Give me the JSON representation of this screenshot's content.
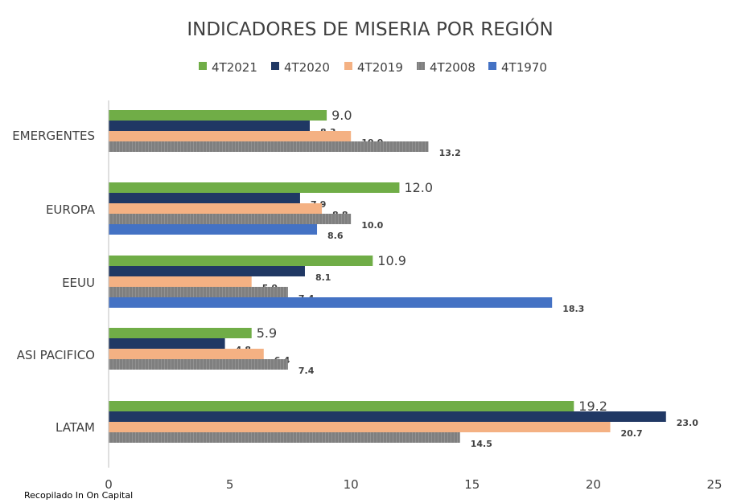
{
  "chart_data": {
    "type": "bar",
    "orientation": "horizontal",
    "title": "INDICADORES DE MISERIA POR REGIÓN",
    "categories": [
      "EMERGENTES",
      "EUROPA",
      "EEUU",
      "ASI PACIFICO",
      "LATAM"
    ],
    "series": [
      {
        "name": "4T2021",
        "color": "#70ad47",
        "values": [
          9.0,
          12.0,
          10.9,
          5.9,
          19.2
        ],
        "labels": [
          "9.0",
          "12.0",
          "10.9",
          "5.9",
          "19.2"
        ],
        "pattern": "solid"
      },
      {
        "name": "4T2020",
        "color": "#203864",
        "values": [
          8.3,
          7.9,
          8.1,
          4.8,
          23.0
        ],
        "labels": [
          "8.3",
          "7.9",
          "8.1",
          "4.8",
          "23.0"
        ],
        "pattern": "solid"
      },
      {
        "name": "4T2019",
        "color": "#f4b183",
        "values": [
          10.0,
          8.8,
          5.9,
          6.4,
          20.7
        ],
        "labels": [
          "10.0",
          "8.8",
          "5.9",
          "6.4",
          "20.7"
        ],
        "pattern": "solid"
      },
      {
        "name": "4T2008",
        "color": "#7f7f7f",
        "values": [
          13.2,
          10.0,
          7.4,
          7.4,
          14.5
        ],
        "labels": [
          "13.2",
          "10.0",
          "7.4",
          "7.4",
          "14.5"
        ],
        "pattern": "striped"
      },
      {
        "name": "4T1970",
        "color": "#4472c4",
        "values": [
          null,
          8.6,
          18.3,
          null,
          null
        ],
        "labels": [
          null,
          "8.6",
          "18.3",
          null,
          null
        ],
        "pattern": "solid"
      }
    ],
    "xlim": [
      0,
      25
    ],
    "xticks": [
      "0",
      "5",
      "10",
      "15",
      "20",
      "25"
    ],
    "xtick_values": [
      0,
      5,
      10,
      15,
      20,
      25
    ],
    "legend_position": "top",
    "grid": false
  },
  "source_note": "Recopilado In On Capital"
}
